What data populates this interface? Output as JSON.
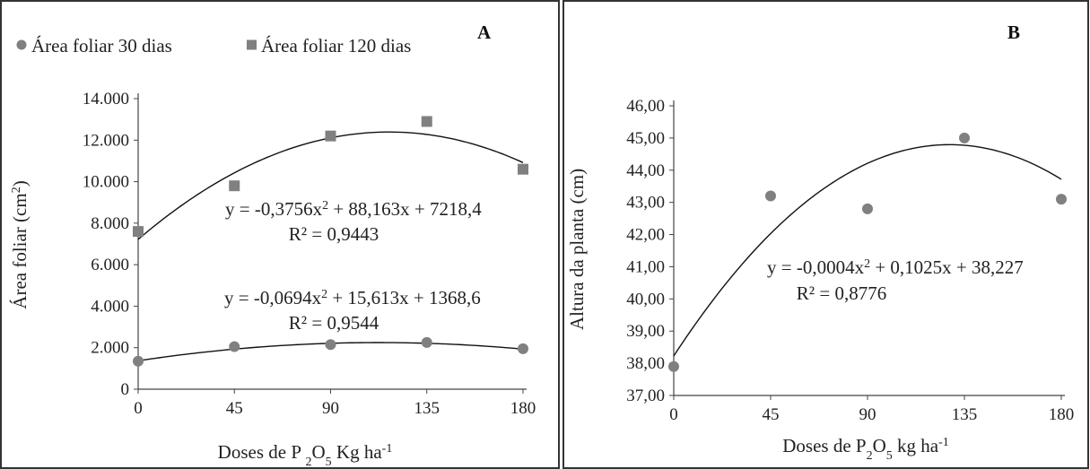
{
  "chart_data": [
    {
      "type": "scatter",
      "panel_label": "A",
      "xlabel_parts": [
        "Doses de P ",
        "2",
        "O",
        "5",
        " Kg ha",
        "-1"
      ],
      "ylabel_parts": [
        "Área foliar (cm",
        "2",
        ")"
      ],
      "x": [
        0,
        45,
        90,
        135,
        180
      ],
      "x_ticks": [
        "0",
        "45",
        "90",
        "135",
        "180"
      ],
      "y_ticks": [
        "0",
        "2.000",
        "4.000",
        "6.000",
        "8.000",
        "10.000",
        "12.000",
        "14.000"
      ],
      "ylim": [
        0,
        14000
      ],
      "xlim": [
        0,
        180
      ],
      "legend_position": "top-left",
      "series": [
        {
          "name": "Área foliar 30 dias",
          "marker": "circle",
          "color": "#808080",
          "values": [
            1350,
            2050,
            2150,
            2250,
            1950
          ],
          "fit": {
            "a": -0.0694,
            "b": 15.613,
            "c": 1368.6
          },
          "equation_parts": [
            "y = -0,0694x",
            "2",
            " + 15,613x + 1368,6"
          ],
          "r2": "R² = 0,9544"
        },
        {
          "name": "Área foliar 120 dias",
          "marker": "square",
          "color": "#808080",
          "values": [
            7600,
            9800,
            12200,
            12900,
            10600
          ],
          "fit": {
            "a": -0.3756,
            "b": 88.163,
            "c": 7218.4
          },
          "equation_parts": [
            "y = -0,3756x",
            "2",
            " + 88,163x + 7218,4"
          ],
          "r2": "R² = 0,9443"
        }
      ]
    },
    {
      "type": "scatter",
      "panel_label": "B",
      "xlabel_parts": [
        "Doses de P",
        "2",
        "O",
        "5",
        " kg ha",
        "-1"
      ],
      "ylabel": "Altura da planta (cm)",
      "x": [
        0,
        45,
        90,
        135,
        180
      ],
      "x_ticks": [
        "0",
        "45",
        "90",
        "135",
        "180"
      ],
      "y_ticks": [
        "37,00",
        "38,00",
        "39,00",
        "40,00",
        "41,00",
        "42,00",
        "43,00",
        "44,00",
        "45,00",
        "46,00"
      ],
      "ylim": [
        37,
        46
      ],
      "xlim": [
        0,
        180
      ],
      "series": [
        {
          "marker": "circle",
          "color": "#808080",
          "values": [
            37.9,
            43.2,
            42.8,
            45.0,
            43.1
          ],
          "fit": {
            "a": -0.0004,
            "b": 0.1025,
            "c": 38.227
          },
          "equation_parts": [
            "y = -0,0004x",
            "2",
            " + 0,1025x + 38,227"
          ],
          "r2": "R² = 0,8776"
        }
      ]
    }
  ]
}
